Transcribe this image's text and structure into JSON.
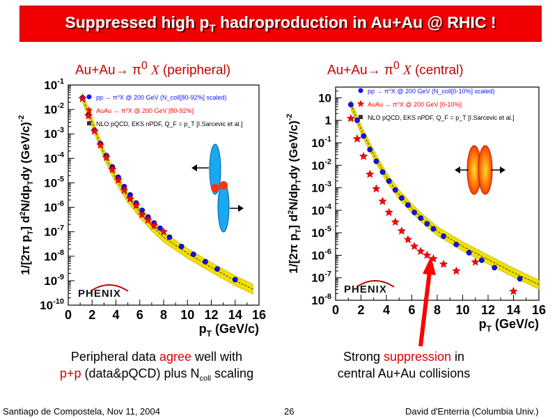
{
  "title": {
    "main": "Suppressed high p",
    "sub": "T",
    "rest": " hadroproduction in Au+Au @ RHIC !"
  },
  "left_heading": {
    "prefix": "Au+Au",
    "arrow": "→",
    "pi": "π",
    "sup": "0",
    "x": "X",
    "suffix": "(peripheral)"
  },
  "right_heading": {
    "prefix": "Au+Au",
    "arrow": "→",
    "pi": "π",
    "sup": "0",
    "x": "X",
    "suffix": "(central)"
  },
  "left_caption": {
    "line1_a": "Peripheral data ",
    "line1_red": "agree",
    "line1_b": " well with",
    "line2_red": "p+p",
    "line2_a": " (data&pQCD) plus N",
    "line2_sub": "coll",
    "line2_b": " scaling"
  },
  "right_caption": {
    "line1_a": "Strong ",
    "line1_red": "suppression",
    "line1_b": " in",
    "line2": "central Au+Au collisions"
  },
  "footer": {
    "left": "Santiago de Compostela, Nov 11, 2004",
    "page": "26",
    "right": "David d'Enterria (Columbia Univ.)"
  },
  "colors": {
    "title_bg": "#f00000",
    "pp_blue": "#1010ff",
    "auau_red": "#ff0000",
    "band_yellow": "#f0e000"
  },
  "chart_data": [
    {
      "type": "scatter",
      "panel": "peripheral",
      "xlabel": "p_T (GeV/c)",
      "ylabel": "1/[2π p_T] d²N/dp_Tdy (GeV/c)^-2",
      "xlim": [
        0,
        16
      ],
      "ylim": [
        1e-10,
        0.1
      ],
      "log_y": true,
      "x_ticks": [
        "0",
        "2",
        "4",
        "6",
        "8",
        "10",
        "12",
        "14",
        "16"
      ],
      "y_ticks": [
        {
          "b": "10",
          "e": "-10"
        },
        {
          "b": "10",
          "e": "-9"
        },
        {
          "b": "10",
          "e": "-8"
        },
        {
          "b": "10",
          "e": "-7"
        },
        {
          "b": "10",
          "e": "-6"
        },
        {
          "b": "10",
          "e": "-5"
        },
        {
          "b": "10",
          "e": "-4"
        },
        {
          "b": "10",
          "e": "-3"
        },
        {
          "b": "10",
          "e": "-2"
        },
        {
          "b": "10",
          "e": "-1"
        }
      ],
      "legend": [
        {
          "label": "pp → π⁰X @ 200 GeV (N_coll[80-92%] scaled)",
          "color": "#1010ff",
          "marker": "circle"
        },
        {
          "label": "AuAu → π⁰X @ 200 GeV [80-92%]",
          "color": "#ff0000",
          "marker": "star"
        },
        {
          "label": "NLO pQCD, EKS nPDF, Q_F = p_T [I.Sarcevic et al.]",
          "color": "#000000",
          "marker": "square"
        }
      ],
      "logo": "PHENIX",
      "series": [
        {
          "name": "pp → π⁰X @ 200 GeV (N_coll[80-92%] scaled)",
          "marker": "circle",
          "x": [
            1.2,
            1.7,
            2.2,
            2.7,
            3.2,
            3.7,
            4.2,
            4.7,
            5.2,
            5.7,
            6.2,
            6.7,
            7.2,
            7.7,
            8.5,
            9.5,
            10.5,
            11.5,
            12.5,
            14.0
          ],
          "y": [
            0.03,
            0.006,
            0.0014,
            0.0004,
            0.00013,
            4.5e-05,
            1.7e-05,
            7e-06,
            3.2e-06,
            1.5e-06,
            7.5e-07,
            4e-07,
            2.3e-07,
            1.4e-07,
            6e-08,
            2.5e-08,
            1.2e-08,
            6e-09,
            3e-09,
            1.1e-09
          ]
        },
        {
          "name": "AuAu → π⁰X @ 200 GeV [80-92%]",
          "marker": "star",
          "x": [
            1.2,
            1.7,
            2.2,
            2.7,
            3.2,
            3.7,
            4.2,
            4.7,
            5.2,
            5.7,
            6.2,
            6.7,
            7.2,
            8.0
          ],
          "y": [
            0.028,
            0.0055,
            0.0013,
            0.00035,
            0.00011,
            3.5e-05,
            1.3e-05,
            5e-06,
            2.2e-06,
            1.2e-06,
            5e-07,
            3e-07,
            1.8e-07,
            1e-07
          ]
        },
        {
          "name": "NLO pQCD, EKS nPDF, Q_F = p_T [I.Sarcevic et al.]",
          "type": "band",
          "x": [
            1.2,
            2,
            3,
            4,
            5,
            6,
            7,
            8,
            10,
            12,
            14,
            15.5
          ],
          "y": [
            0.03,
            0.003,
            0.00015,
            1.5e-05,
            2.5e-06,
            6e-07,
            1.7e-07,
            6e-08,
            1.3e-08,
            3.5e-09,
            1e-09,
            4.5e-10
          ]
        }
      ]
    },
    {
      "type": "scatter",
      "panel": "central",
      "xlabel": "p_T (GeV/c)",
      "ylabel": "1/[2π p_T] d²N/dp_Tdy (GeV/c)^-2",
      "xlim": [
        0,
        16
      ],
      "ylim": [
        1e-08,
        30
      ],
      "log_y": true,
      "x_ticks": [
        "0",
        "2",
        "4",
        "6",
        "8",
        "10",
        "12",
        "14",
        "16"
      ],
      "y_ticks": [
        {
          "b": "10",
          "e": "-8"
        },
        {
          "b": "10",
          "e": "-7"
        },
        {
          "b": "10",
          "e": "-6"
        },
        {
          "b": "10",
          "e": "-5"
        },
        {
          "b": "10",
          "e": "-4"
        },
        {
          "b": "10",
          "e": "-3"
        },
        {
          "b": "10",
          "e": "-2"
        },
        {
          "b": "10",
          "e": "-1"
        },
        {
          "b": "1",
          "e": ""
        },
        {
          "b": "10",
          "e": ""
        }
      ],
      "legend": [
        {
          "label": "pp → π⁰X @ 200 GeV (N_coll[0-10%] scaled)",
          "color": "#1010ff",
          "marker": "circle"
        },
        {
          "label": "AuAu → π⁰X @ 200 GeV [0-10%]",
          "color": "#ff0000",
          "marker": "star"
        },
        {
          "label": "NLO pQCD, EKS nPDF, Q_F = p_T [I.Sarcevic et al.]",
          "color": "#000000",
          "marker": "square"
        }
      ],
      "logo": "PHENIX",
      "series": [
        {
          "name": "pp → π⁰X @ 200 GeV (N_coll[0-10%] scaled)",
          "marker": "circle",
          "x": [
            1.2,
            1.7,
            2.2,
            2.7,
            3.2,
            3.7,
            4.2,
            4.7,
            5.2,
            5.7,
            6.2,
            6.7,
            7.2,
            7.7,
            8.5,
            9.5,
            10.5,
            11.5,
            12.5,
            14.5
          ],
          "y": [
            5,
            1,
            0.2,
            0.05,
            0.015,
            0.005,
            0.002,
            0.0008,
            0.00035,
            0.00017,
            8e-05,
            4.5e-05,
            2.5e-05,
            1.5e-05,
            7e-06,
            3e-06,
            1.3e-06,
            6e-07,
            2.8e-07,
            9e-08
          ]
        },
        {
          "name": "AuAu → π⁰X @ 200 GeV [0-10%]",
          "marker": "star",
          "x": [
            1.2,
            1.7,
            2.2,
            2.7,
            3.2,
            3.7,
            4.2,
            4.7,
            5.2,
            5.7,
            6.2,
            6.7,
            7.2,
            7.7,
            8.5,
            9.5,
            11.0,
            14.0
          ],
          "y": [
            1.2,
            0.15,
            0.025,
            0.004,
            0.0009,
            0.00025,
            8e-05,
            3e-05,
            1.2e-05,
            5e-06,
            2.5e-06,
            1.5e-06,
            1e-06,
            7e-07,
            4e-07,
            2e-07,
            5e-07,
            2.5e-08
          ]
        },
        {
          "name": "NLO pQCD, EKS nPDF, Q_F = p_T [I.Sarcevic et al.]",
          "type": "band",
          "x": [
            1.2,
            2,
            3,
            4,
            5,
            6,
            7,
            8,
            10,
            12,
            14,
            16
          ],
          "y": [
            5,
            0.4,
            0.03,
            0.003,
            0.0005,
            0.00012,
            3.5e-05,
            1.2e-05,
            2.5e-06,
            6.5e-07,
            1.7e-07,
            5e-08
          ]
        }
      ]
    }
  ]
}
